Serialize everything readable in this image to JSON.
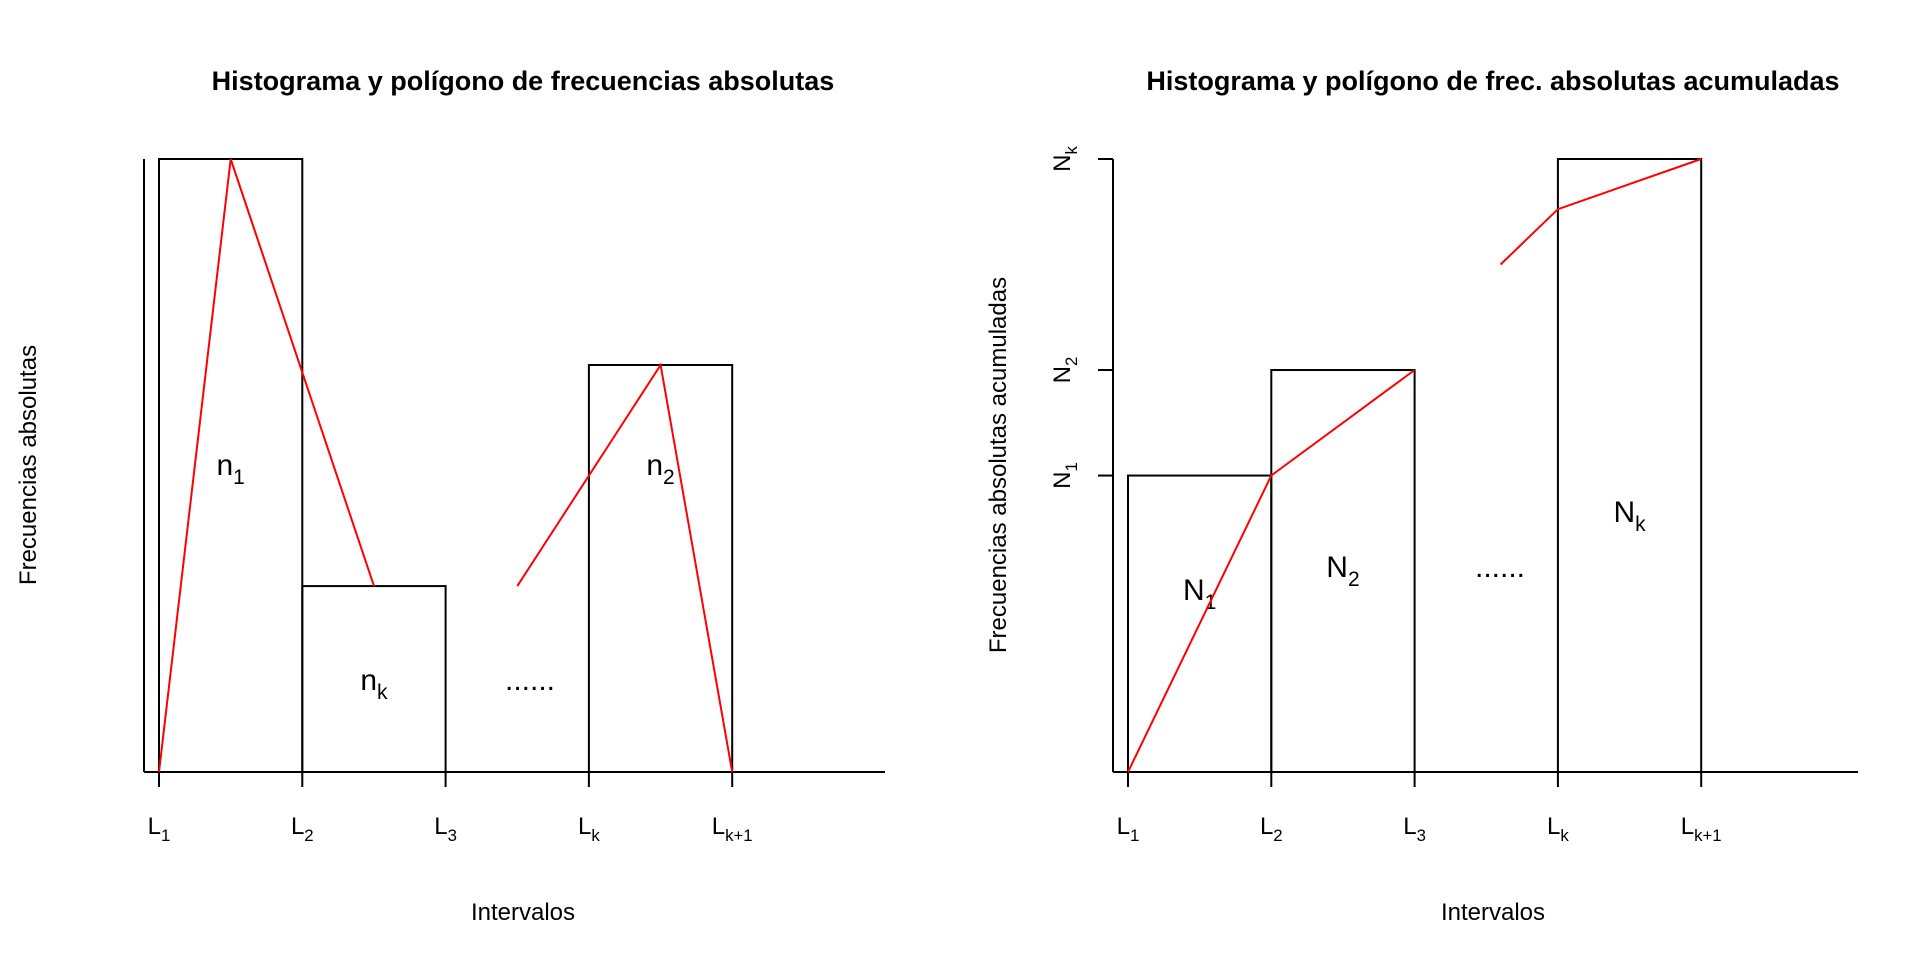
{
  "charts": [
    {
      "title": "Histograma y polígono de frecuencias absolutas",
      "xlabel": "Intervalos",
      "ylabel": "Frecuencias absolutas",
      "x_ticks": [
        {
          "base": "L",
          "sub": "1"
        },
        {
          "base": "L",
          "sub": "2"
        },
        {
          "base": "L",
          "sub": "3"
        },
        {
          "base": "L",
          "sub": "k"
        },
        {
          "base": "L",
          "sub": "k+1"
        }
      ],
      "bar_labels": [
        {
          "base": "n",
          "sub": "1"
        },
        {
          "base": "n",
          "sub": "k"
        },
        {
          "base": "",
          "sub": ""
        },
        {
          "base": "n",
          "sub": "2"
        }
      ],
      "dots": "......"
    },
    {
      "title": "Histograma y polígono de frec. absolutas acumuladas",
      "xlabel": "Intervalos",
      "ylabel": "Frecuencias absolutas acumuladas",
      "x_ticks": [
        {
          "base": "L",
          "sub": "1"
        },
        {
          "base": "L",
          "sub": "2"
        },
        {
          "base": "L",
          "sub": "3"
        },
        {
          "base": "L",
          "sub": "k"
        },
        {
          "base": "L",
          "sub": "k+1"
        }
      ],
      "y_ticks": [
        {
          "base": "N",
          "sub": "1"
        },
        {
          "base": "N",
          "sub": "2"
        },
        {
          "base": "N",
          "sub": "k"
        }
      ],
      "bar_labels": [
        {
          "base": "N",
          "sub": "1"
        },
        {
          "base": "N",
          "sub": "2"
        },
        {
          "base": "",
          "sub": ""
        },
        {
          "base": "N",
          "sub": "k"
        }
      ],
      "dots": "......"
    }
  ],
  "chart_data": [
    {
      "type": "bar",
      "title": "Histograma y polígono de frecuencias absolutas",
      "xlabel": "Intervalos",
      "ylabel": "Frecuencias absolutas",
      "x_ticks": [
        1,
        2,
        3,
        4,
        5
      ],
      "xlim": [
        0.9,
        6
      ],
      "ylim": [
        0,
        12.2
      ],
      "bars": [
        {
          "left": 1,
          "right": 2,
          "value": 12.2
        },
        {
          "left": 2,
          "right": 3,
          "value": 3.7
        },
        {
          "left": 4,
          "right": 5,
          "value": 8.1
        }
      ],
      "polygon_color": "#ff0000",
      "polygon": [
        [
          [
            1,
            0
          ],
          [
            1.5,
            12.2
          ],
          [
            2.5,
            3.7
          ]
        ],
        [
          [
            3.5,
            3.7
          ],
          [
            4.5,
            8.1
          ],
          [
            5,
            0
          ]
        ]
      ],
      "bar_color": "#000000",
      "grid": false
    },
    {
      "type": "bar",
      "title": "Histograma y polígono de frec. absolutas acumuladas",
      "xlabel": "Intervalos",
      "ylabel": "Frecuencias absolutas acumuladas",
      "x_ticks": [
        1,
        2,
        3,
        4,
        5
      ],
      "y_ticks": [
        5.9,
        8,
        12.2
      ],
      "xlim": [
        0.9,
        6
      ],
      "ylim": [
        0,
        12.2
      ],
      "bars": [
        {
          "left": 1,
          "right": 2,
          "value": 5.9
        },
        {
          "left": 2,
          "right": 3,
          "value": 8
        },
        {
          "left": 4,
          "right": 5,
          "value": 12.2
        }
      ],
      "polygon_color": "#ff0000",
      "polygon": [
        [
          [
            1,
            0
          ],
          [
            2,
            5.9
          ],
          [
            3,
            8
          ]
        ],
        [
          [
            3.6,
            10.1
          ],
          [
            4,
            11.2
          ],
          [
            5,
            12.2
          ]
        ]
      ],
      "bar_color": "#000000",
      "grid": false
    }
  ]
}
